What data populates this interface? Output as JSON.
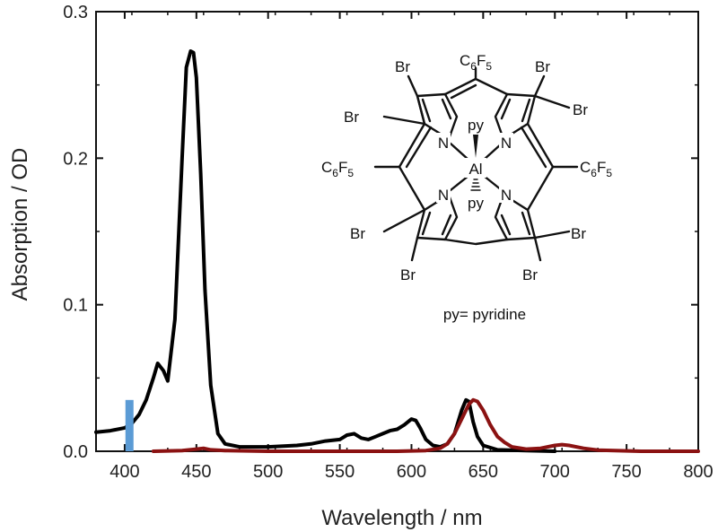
{
  "chart_data": {
    "type": "line",
    "title": "",
    "xlabel": "Wavelength / nm",
    "ylabel": "Absorption / OD",
    "xlim": [
      380,
      800
    ],
    "ylim": [
      0,
      0.3
    ],
    "xticks": [
      400,
      450,
      500,
      550,
      600,
      650,
      700,
      750,
      800
    ],
    "yticks": [
      0.0,
      0.1,
      0.2,
      0.3
    ],
    "ytick_labels": [
      "0.0",
      "0.1",
      "0.2",
      "0.3"
    ],
    "grid": false,
    "legend": "none",
    "series": [
      {
        "color": "#000000",
        "x": [
          380,
          390,
          400,
          405,
          410,
          415,
          420,
          423,
          427,
          430,
          435,
          440,
          443,
          446,
          448,
          450,
          453,
          456,
          460,
          465,
          470,
          480,
          500,
          520,
          530,
          540,
          550,
          555,
          560,
          565,
          570,
          575,
          580,
          585,
          590,
          595,
          600,
          603,
          606,
          610,
          615,
          620,
          625,
          630,
          635,
          638,
          640,
          643,
          646,
          650,
          660,
          680,
          700
        ],
        "y": [
          0.013,
          0.014,
          0.016,
          0.019,
          0.025,
          0.035,
          0.05,
          0.06,
          0.055,
          0.048,
          0.09,
          0.2,
          0.262,
          0.273,
          0.272,
          0.255,
          0.19,
          0.11,
          0.045,
          0.012,
          0.005,
          0.003,
          0.003,
          0.004,
          0.005,
          0.007,
          0.008,
          0.011,
          0.012,
          0.009,
          0.008,
          0.01,
          0.012,
          0.014,
          0.015,
          0.018,
          0.022,
          0.021,
          0.016,
          0.008,
          0.004,
          0.003,
          0.005,
          0.012,
          0.028,
          0.035,
          0.034,
          0.02,
          0.01,
          0.004,
          0.001,
          0.0005,
          0.0
        ]
      },
      {
        "color": "#8b1212",
        "x": [
          420,
          440,
          450,
          455,
          460,
          470,
          500,
          550,
          590,
          610,
          620,
          625,
          630,
          635,
          640,
          643,
          646,
          650,
          655,
          660,
          665,
          670,
          680,
          690,
          700,
          705,
          710,
          720,
          730,
          760,
          800
        ],
        "y": [
          0.0,
          0.0005,
          0.0015,
          0.002,
          0.001,
          0.0005,
          0.0,
          0.0,
          0.0,
          0.0005,
          0.002,
          0.005,
          0.012,
          0.022,
          0.032,
          0.035,
          0.034,
          0.028,
          0.018,
          0.01,
          0.006,
          0.003,
          0.0015,
          0.002,
          0.004,
          0.0045,
          0.004,
          0.002,
          0.0008,
          0.0,
          0.0
        ]
      }
    ],
    "marker": {
      "x": 403,
      "y_top": 0.035,
      "color": "#5b9bd5"
    }
  },
  "inset": {
    "substituents": {
      "top_left": "Br",
      "top_left_outer": "Br",
      "top": "C6F5",
      "top_right": "Br",
      "top_right_outer": "Br",
      "left": "C6F5",
      "right": "C6F5",
      "bottom_left_outer": "Br",
      "bottom_left": "Br",
      "bottom_right_outer": "Br",
      "bottom_right": "Br"
    },
    "nitrogen": "N",
    "metal": "Al",
    "axial_top": "py",
    "axial_bottom": "py",
    "caption": "py= pyridine"
  }
}
